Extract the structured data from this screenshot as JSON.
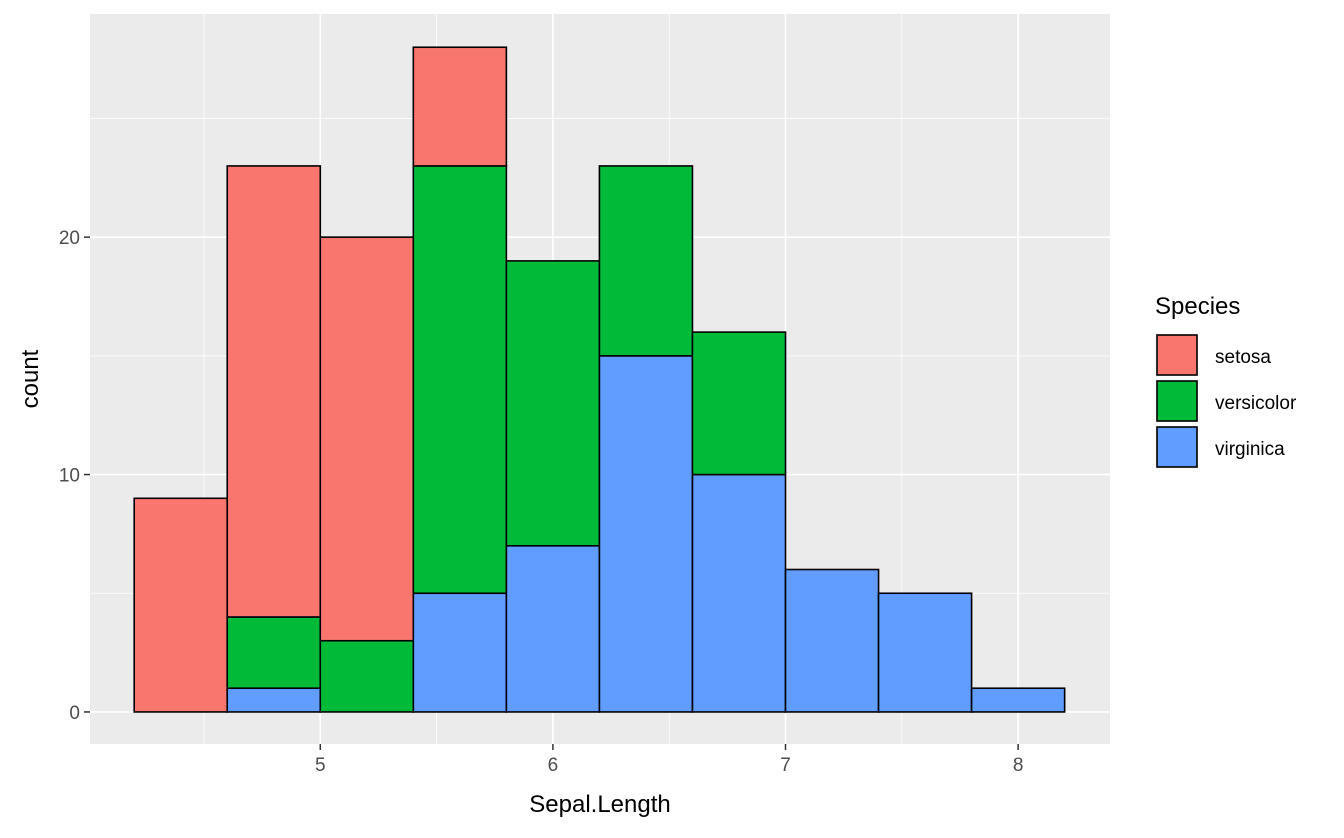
{
  "chart_data": {
    "type": "bar",
    "stacked": true,
    "title": "",
    "xlabel": "Sepal.Length",
    "ylabel": "count",
    "xlim": [
      4.01,
      8.395
    ],
    "ylim": [
      -1.35,
      29.4
    ],
    "xticks": [
      5,
      6,
      7,
      8
    ],
    "yticks": [
      0,
      10,
      20
    ],
    "grid": true,
    "bin_edges": [
      4.2,
      4.6,
      5.0,
      5.4,
      5.8,
      6.2,
      6.6,
      7.0,
      7.4,
      7.8,
      8.2
    ],
    "series": [
      {
        "name": "virginica",
        "color": "#619CFF",
        "values": [
          0,
          1,
          0,
          5,
          7,
          15,
          10,
          6,
          5,
          1
        ]
      },
      {
        "name": "versicolor",
        "color": "#00BA38",
        "values": [
          0,
          3,
          3,
          18,
          12,
          8,
          6,
          0,
          0,
          0
        ]
      },
      {
        "name": "setosa",
        "color": "#F8766D",
        "values": [
          9,
          19,
          17,
          5,
          0,
          0,
          0,
          0,
          0,
          0
        ]
      }
    ],
    "legend": {
      "title": "Species",
      "placement": "right",
      "entries": [
        {
          "label": "setosa",
          "color": "#F8766D"
        },
        {
          "label": "versicolor",
          "color": "#00BA38"
        },
        {
          "label": "virginica",
          "color": "#619CFF"
        }
      ]
    }
  }
}
